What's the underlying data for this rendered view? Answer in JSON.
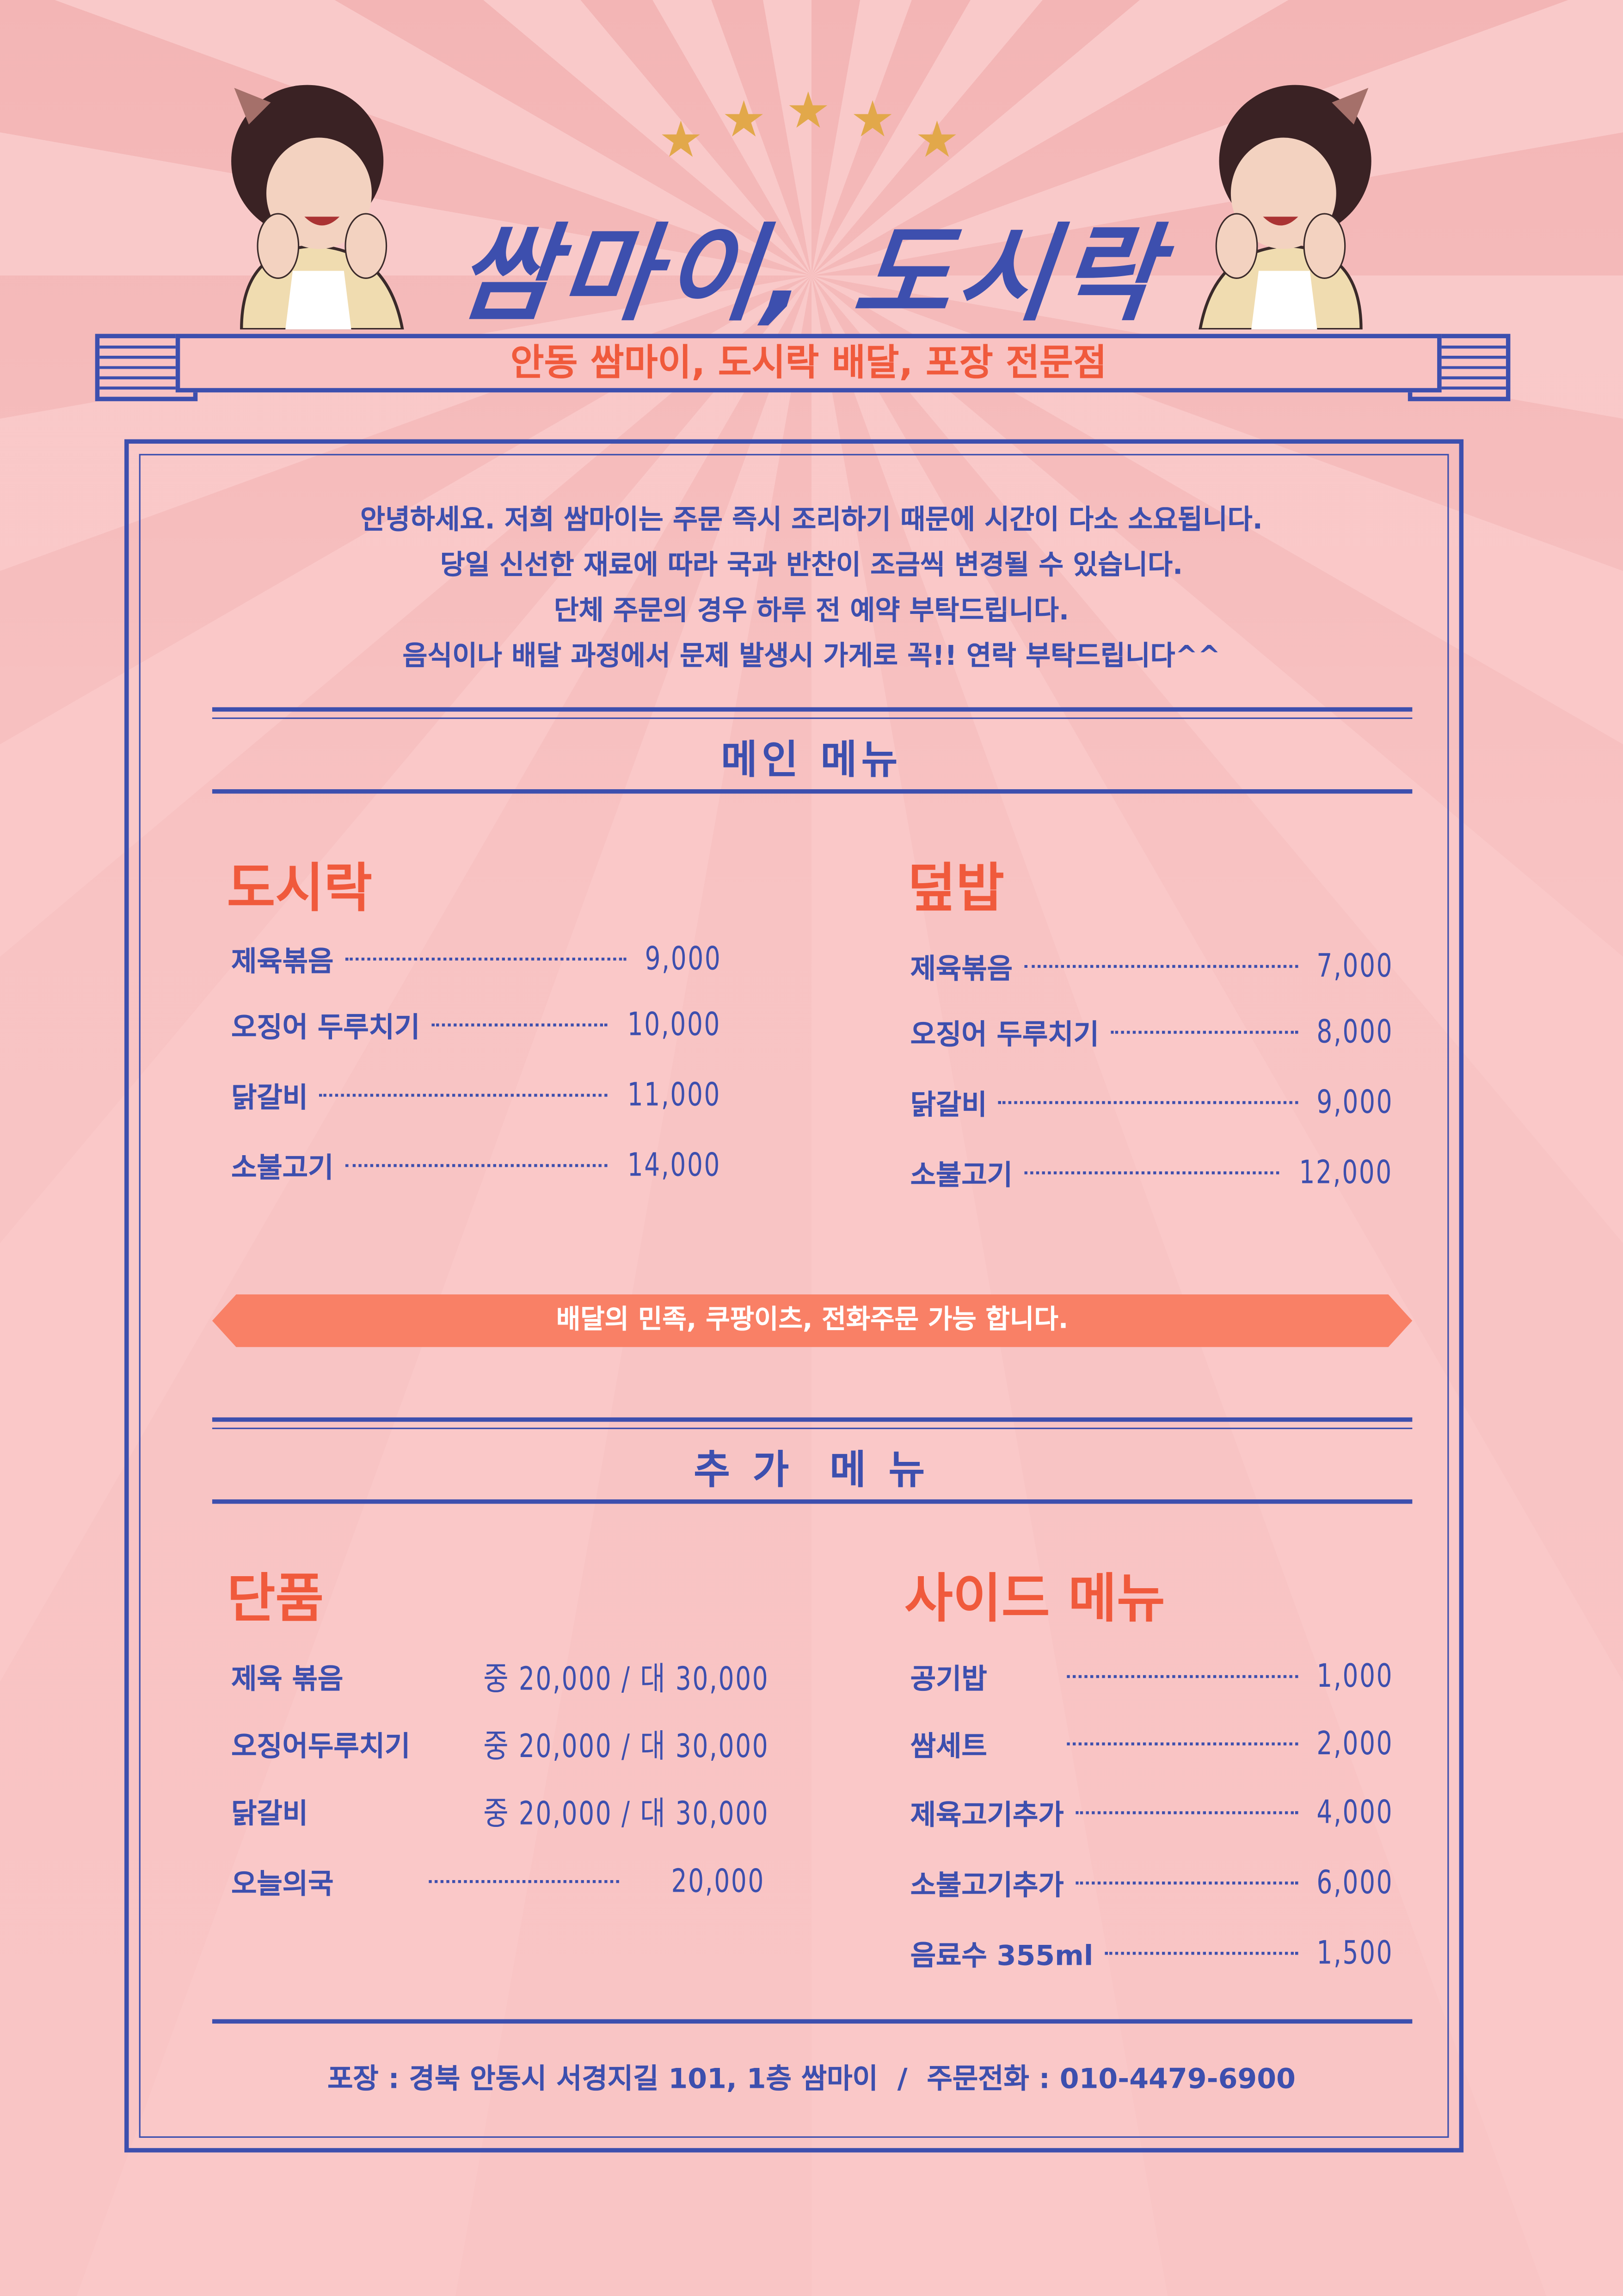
{
  "header": {
    "title": "쌈마이, 도시락",
    "subtitle": "안동 쌈마이, 도시락 배달, 포장 전문점",
    "stars": 5
  },
  "intro": [
    "안녕하세요. 저희 쌈마이는 주문 즉시 조리하기 때문에  시간이  다소 소요됩니다.",
    "당일 신선한 재료에 따라 국과 반찬이 조금씩 변경될 수 있습니다.",
    "단체 주문의 경우 하루 전 예약 부탁드립니다.",
    "음식이나 배달 과정에서 문제 발생시 가게로 꼭!! 연락 부탁드립니다^^"
  ],
  "main_menu": {
    "title": "메인 메뉴",
    "left": {
      "title": "도시락",
      "items": [
        {
          "name": "제육볶음",
          "price": "9,000"
        },
        {
          "name": "오징어 두루치기",
          "price": "10,000"
        },
        {
          "name": "닭갈비",
          "price": "11,000"
        },
        {
          "name": "소불고기",
          "price": "14,000"
        }
      ]
    },
    "right": {
      "title": "덮밥",
      "items": [
        {
          "name": "제육볶음",
          "price": "7,000"
        },
        {
          "name": "오징어 두루치기",
          "price": "8,000"
        },
        {
          "name": "닭갈비",
          "price": "9,000"
        },
        {
          "name": "소불고기",
          "price": "12,000"
        }
      ]
    }
  },
  "banner": "배달의 민족, 쿠팡이츠, 전화주문 가능 합니다.",
  "extra_menu": {
    "title": "추 가  메 뉴",
    "left": {
      "title": "단품",
      "items": [
        {
          "name": "제육 볶음",
          "price": "중 20,000 / 대 30,000"
        },
        {
          "name": "오징어두루치기",
          "price": "중 20,000 / 대 30,000"
        },
        {
          "name": "닭갈비",
          "price": "중 20,000 / 대 30,000"
        },
        {
          "name": "오늘의국",
          "price": "20,000"
        }
      ]
    },
    "right": {
      "title": "사이드 메뉴",
      "items": [
        {
          "name": "공기밥",
          "price": "1,000"
        },
        {
          "name": "쌈세트",
          "price": "2,000"
        },
        {
          "name": "제육고기추가",
          "price": "4,000"
        },
        {
          "name": "소불고기추가",
          "price": "6,000"
        },
        {
          "name": "음료수 355ml",
          "price": "1,500"
        }
      ]
    }
  },
  "footer": "포장 : 경북 안동시 서경지길 101, 1층 쌈마이  /  주문전화 : 010-4479-6900",
  "colors": {
    "background": "#f6c0c0",
    "primary_blue": "#3d4fae",
    "accent_orange": "#f05a3c",
    "banner": "#f98066",
    "star": "#e2a84a"
  }
}
